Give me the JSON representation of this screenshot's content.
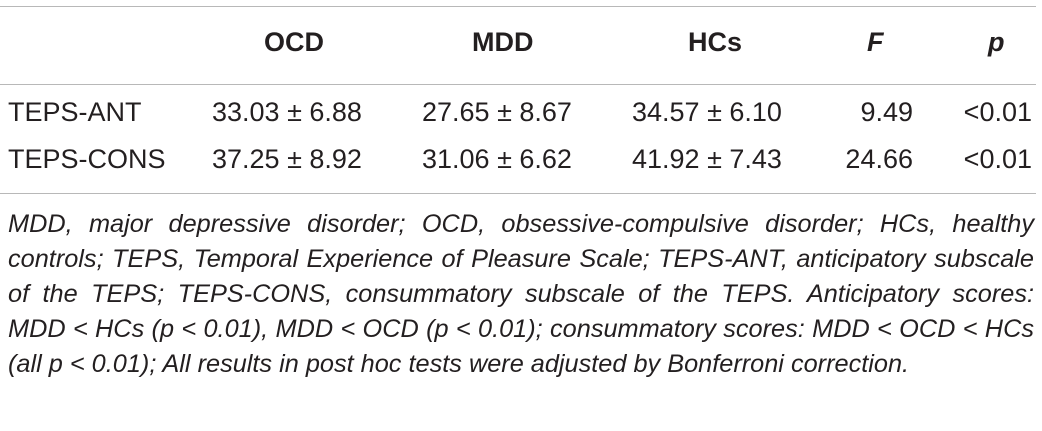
{
  "table": {
    "headers": {
      "label": "",
      "ocd": "OCD",
      "mdd": "MDD",
      "hcs": "HCs",
      "f": "F",
      "p": "p"
    },
    "rows": [
      {
        "label": "TEPS-ANT",
        "ocd": "33.03 ± 6.88",
        "mdd": "27.65 ± 8.67",
        "hcs": "34.57 ± 6.10",
        "f": "9.49",
        "p": "<0.01"
      },
      {
        "label": "TEPS-CONS",
        "ocd": "37.25 ± 8.92",
        "mdd": "31.06 ± 6.62",
        "hcs": "41.92 ± 7.43",
        "f": "24.66",
        "p": "<0.01"
      }
    ],
    "footnote": "MDD, major depressive disorder; OCD, obsessive-compulsive disorder; HCs, healthy controls; TEPS, Temporal Experience of Pleasure Scale; TEPS-ANT, anticipatory subscale of the TEPS; TEPS-CONS, consummatory subscale of the TEPS. Anticipatory scores: MDD < HCs (p < 0.01), MDD < OCD (p < 0.01); consummatory scores: MDD < OCD < HCs (all p < 0.01); All results in post hoc tests were adjusted by Bonferroni correction."
  }
}
